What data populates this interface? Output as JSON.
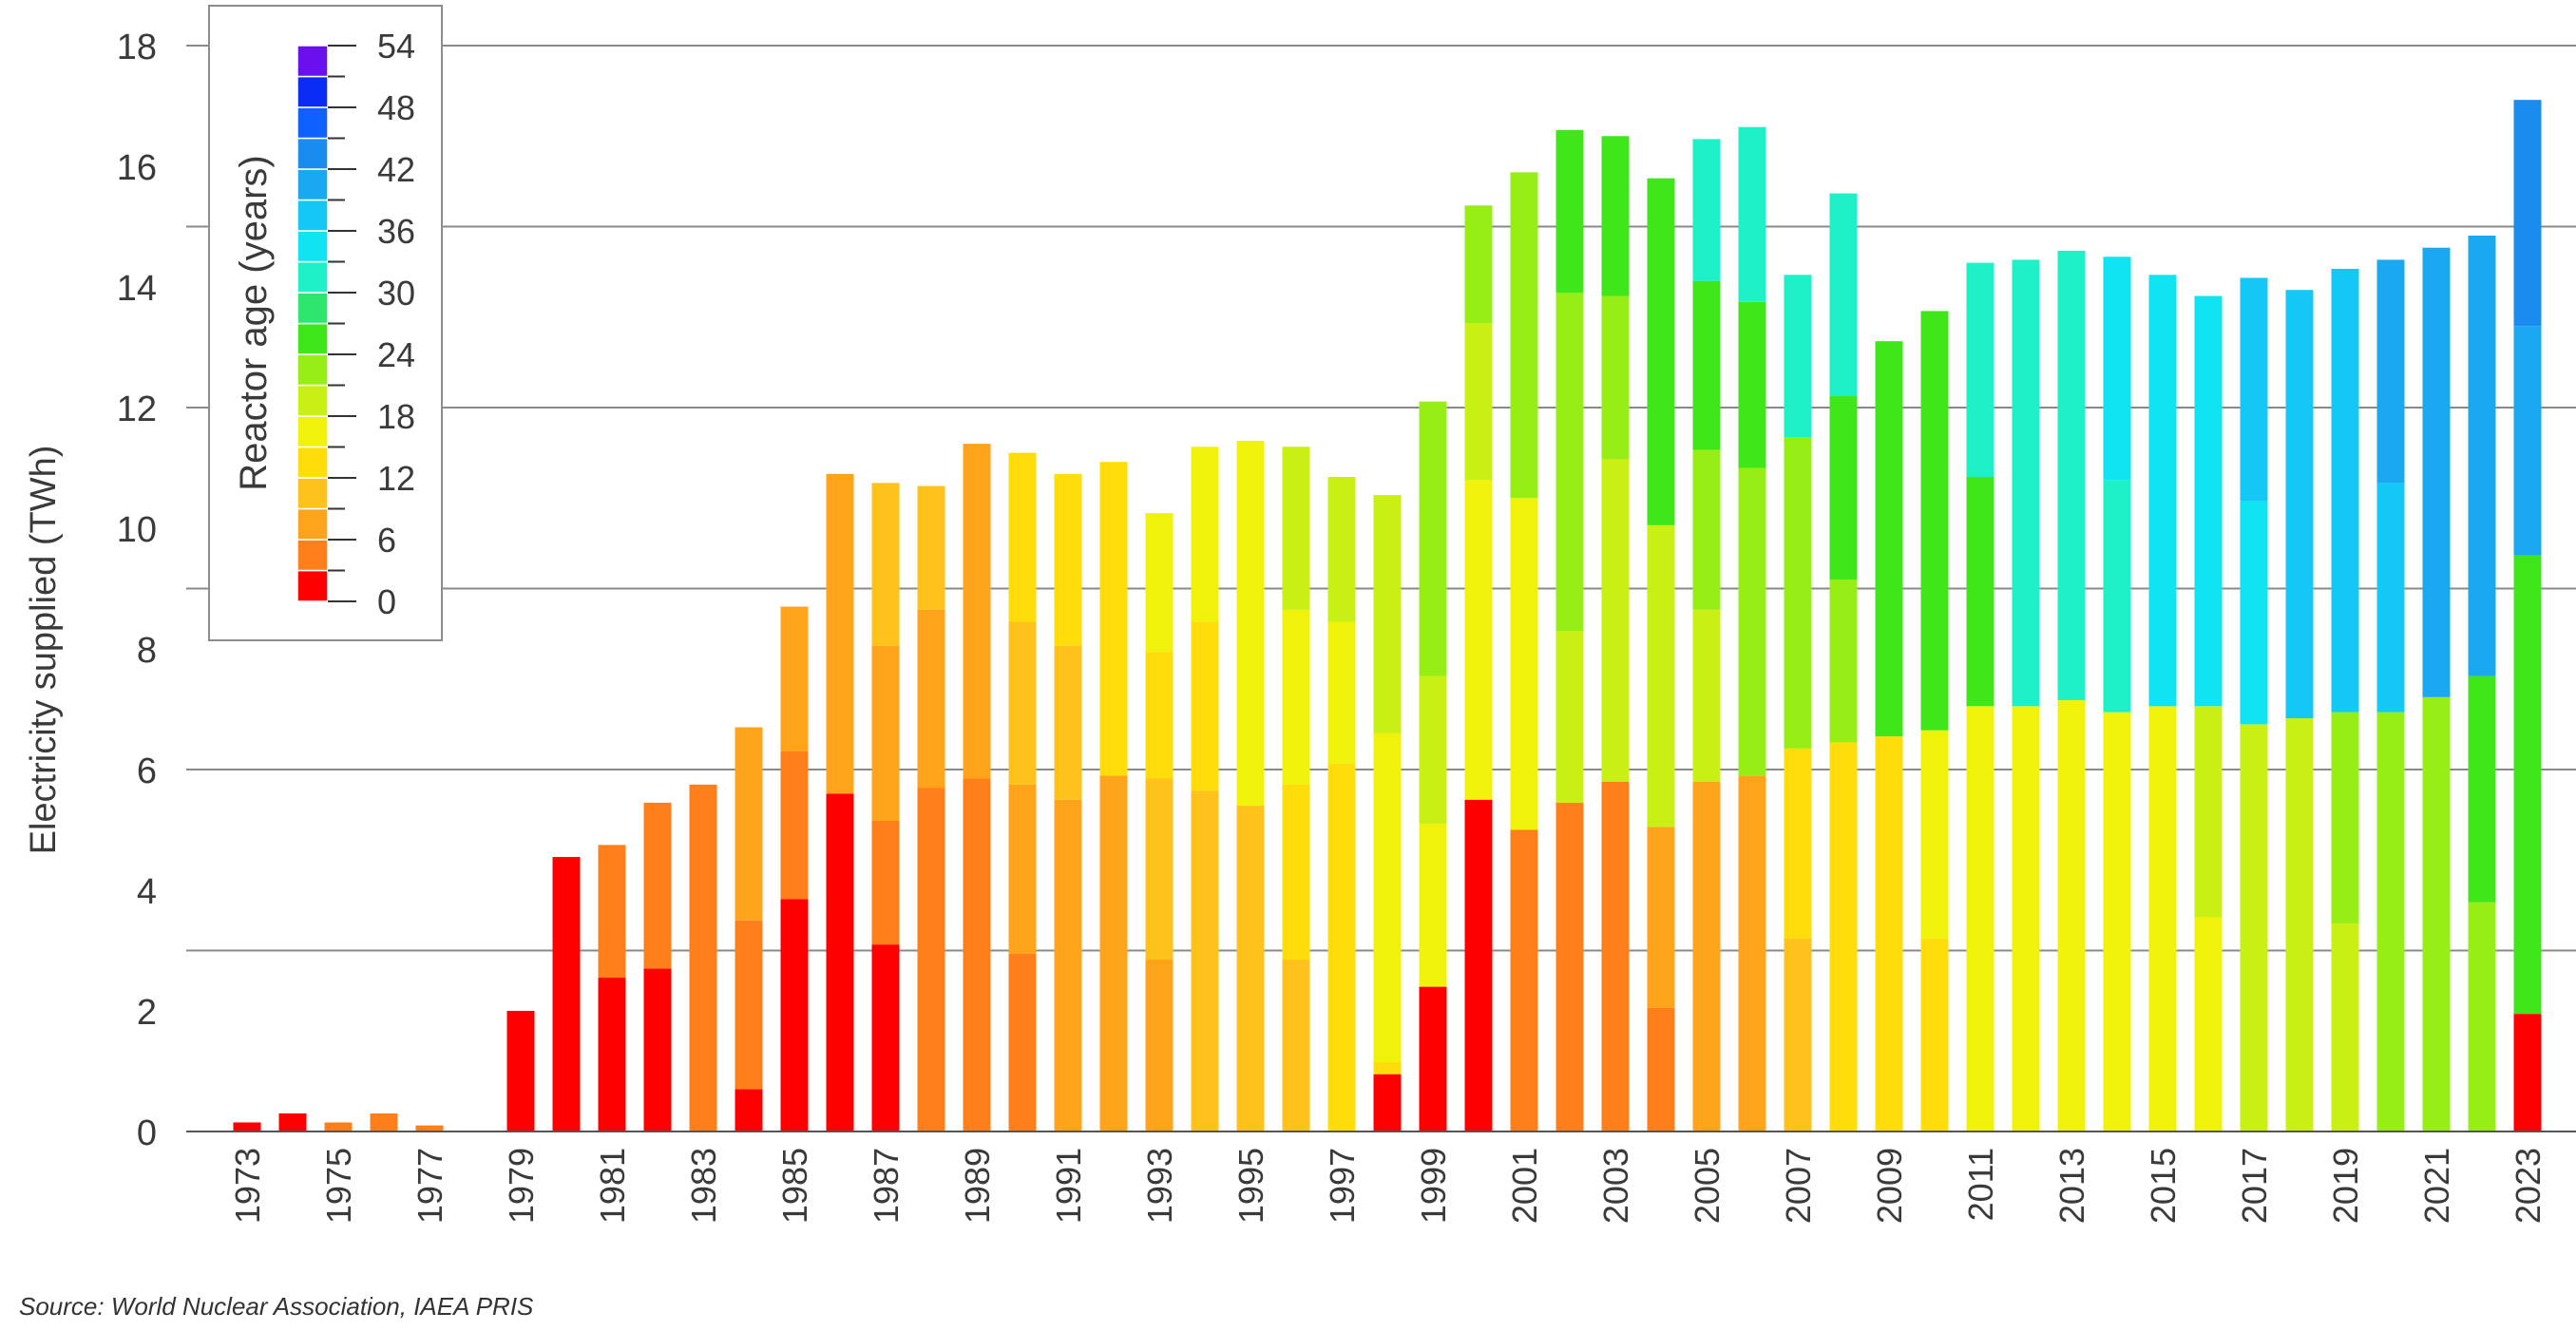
{
  "source_note": "Source: World Nuclear Association, IAEA PRIS",
  "chart_data": {
    "type": "bar",
    "stacked": true,
    "ylabel": "Electricity supplied (TWh)",
    "xlabel": "",
    "ylim": [
      0,
      18
    ],
    "yticks": [
      0,
      2,
      4,
      6,
      8,
      10,
      12,
      14,
      16,
      18
    ],
    "grid": true,
    "years": [
      1973,
      1974,
      1975,
      1976,
      1977,
      1978,
      1979,
      1980,
      1981,
      1982,
      1983,
      1984,
      1985,
      1986,
      1987,
      1988,
      1989,
      1990,
      1991,
      1992,
      1993,
      1994,
      1995,
      1996,
      1997,
      1998,
      1999,
      2000,
      2001,
      2002,
      2003,
      2004,
      2005,
      2006,
      2007,
      2008,
      2009,
      2010,
      2011,
      2012,
      2013,
      2014,
      2015,
      2016,
      2017,
      2018,
      2019,
      2020,
      2021,
      2022,
      2023
    ],
    "xtick_labels": [
      "1973",
      "1975",
      "1977",
      "1979",
      "1981",
      "1983",
      "1985",
      "1987",
      "1989",
      "1991",
      "1993",
      "1995",
      "1997",
      "1999",
      "2001",
      "2003",
      "2005",
      "2007",
      "2009",
      "2011",
      "2013",
      "2015",
      "2017",
      "2019",
      "2021",
      "2023"
    ],
    "bars": [
      {
        "year": 1973,
        "segments": [
          {
            "age": 0,
            "value": 0.15
          }
        ]
      },
      {
        "year": 1974,
        "segments": [
          {
            "age": 0,
            "value": 0.3
          }
        ]
      },
      {
        "year": 1975,
        "segments": [
          {
            "age": 3,
            "value": 0.15
          }
        ]
      },
      {
        "year": 1976,
        "segments": [
          {
            "age": 3,
            "value": 0.3
          }
        ]
      },
      {
        "year": 1977,
        "segments": [
          {
            "age": 3,
            "value": 0.1
          }
        ]
      },
      {
        "year": 1978,
        "segments": []
      },
      {
        "year": 1979,
        "segments": [
          {
            "age": 0,
            "value": 2.0
          }
        ]
      },
      {
        "year": 1980,
        "segments": [
          {
            "age": 0,
            "value": 4.55
          }
        ]
      },
      {
        "year": 1981,
        "segments": [
          {
            "age": 0,
            "value": 2.55
          },
          {
            "age": 3,
            "value": 2.2
          }
        ]
      },
      {
        "year": 1982,
        "segments": [
          {
            "age": 0,
            "value": 2.7
          },
          {
            "age": 3,
            "value": 2.75
          }
        ]
      },
      {
        "year": 1983,
        "segments": [
          {
            "age": 3,
            "value": 5.75
          }
        ]
      },
      {
        "year": 1984,
        "segments": [
          {
            "age": 0,
            "value": 0.7
          },
          {
            "age": 3,
            "value": 2.8
          },
          {
            "age": 6,
            "value": 3.2
          }
        ]
      },
      {
        "year": 1985,
        "segments": [
          {
            "age": 0,
            "value": 3.85
          },
          {
            "age": 3,
            "value": 2.45
          },
          {
            "age": 6,
            "value": 2.4
          }
        ]
      },
      {
        "year": 1986,
        "segments": [
          {
            "age": 0,
            "value": 5.6
          },
          {
            "age": 6,
            "value": 5.3
          }
        ]
      },
      {
        "year": 1987,
        "segments": [
          {
            "age": 0,
            "value": 3.1
          },
          {
            "age": 3,
            "value": 2.05
          },
          {
            "age": 6,
            "value": 2.9
          },
          {
            "age": 9,
            "value": 2.7
          }
        ]
      },
      {
        "year": 1988,
        "segments": [
          {
            "age": 3,
            "value": 5.7
          },
          {
            "age": 6,
            "value": 2.95
          },
          {
            "age": 9,
            "value": 2.05
          }
        ]
      },
      {
        "year": 1989,
        "segments": [
          {
            "age": 3,
            "value": 5.85
          },
          {
            "age": 6,
            "value": 5.55
          }
        ]
      },
      {
        "year": 1990,
        "segments": [
          {
            "age": 3,
            "value": 2.95
          },
          {
            "age": 6,
            "value": 2.8
          },
          {
            "age": 9,
            "value": 2.7
          },
          {
            "age": 12,
            "value": 2.8
          }
        ]
      },
      {
        "year": 1991,
        "segments": [
          {
            "age": 6,
            "value": 5.5
          },
          {
            "age": 9,
            "value": 2.55
          },
          {
            "age": 12,
            "value": 2.85
          }
        ]
      },
      {
        "year": 1992,
        "segments": [
          {
            "age": 6,
            "value": 5.9
          },
          {
            "age": 12,
            "value": 5.2
          }
        ]
      },
      {
        "year": 1993,
        "segments": [
          {
            "age": 6,
            "value": 2.85
          },
          {
            "age": 9,
            "value": 3.0
          },
          {
            "age": 12,
            "value": 2.1
          },
          {
            "age": 15,
            "value": 2.3
          }
        ]
      },
      {
        "year": 1994,
        "segments": [
          {
            "age": 9,
            "value": 5.65
          },
          {
            "age": 12,
            "value": 2.8
          },
          {
            "age": 15,
            "value": 2.9
          }
        ]
      },
      {
        "year": 1995,
        "segments": [
          {
            "age": 9,
            "value": 5.4
          },
          {
            "age": 15,
            "value": 6.05
          }
        ]
      },
      {
        "year": 1996,
        "segments": [
          {
            "age": 9,
            "value": 2.85
          },
          {
            "age": 12,
            "value": 2.9
          },
          {
            "age": 15,
            "value": 2.9
          },
          {
            "age": 18,
            "value": 2.7
          }
        ]
      },
      {
        "year": 1997,
        "segments": [
          {
            "age": 12,
            "value": 6.1
          },
          {
            "age": 15,
            "value": 2.35
          },
          {
            "age": 18,
            "value": 2.4
          }
        ]
      },
      {
        "year": 1998,
        "segments": [
          {
            "age": 0,
            "value": 0.95
          },
          {
            "age": 12,
            "value": 0.2
          },
          {
            "age": 15,
            "value": 5.45
          },
          {
            "age": 18,
            "value": 3.95
          }
        ]
      },
      {
        "year": 1999,
        "segments": [
          {
            "age": 0,
            "value": 2.4
          },
          {
            "age": 15,
            "value": 2.7
          },
          {
            "age": 18,
            "value": 2.45
          },
          {
            "age": 21,
            "value": 4.55
          }
        ]
      },
      {
        "year": 2000,
        "segments": [
          {
            "age": 0,
            "value": 5.5
          },
          {
            "age": 15,
            "value": 5.3
          },
          {
            "age": 18,
            "value": 2.6
          },
          {
            "age": 21,
            "value": 1.95
          }
        ]
      },
      {
        "year": 2001,
        "segments": [
          {
            "age": 3,
            "value": 5.0
          },
          {
            "age": 15,
            "value": 5.5
          },
          {
            "age": 21,
            "value": 5.4
          }
        ]
      },
      {
        "year": 2002,
        "segments": [
          {
            "age": 3,
            "value": 5.45
          },
          {
            "age": 18,
            "value": 2.85
          },
          {
            "age": 21,
            "value": 5.6
          },
          {
            "age": 24,
            "value": 2.7
          }
        ]
      },
      {
        "year": 2003,
        "segments": [
          {
            "age": 3,
            "value": 5.8
          },
          {
            "age": 18,
            "value": 5.35
          },
          {
            "age": 21,
            "value": 2.7
          },
          {
            "age": 24,
            "value": 2.65
          }
        ]
      },
      {
        "year": 2004,
        "segments": [
          {
            "age": 3,
            "value": 2.05
          },
          {
            "age": 6,
            "value": 3.0
          },
          {
            "age": 18,
            "value": 5.0
          },
          {
            "age": 24,
            "value": 5.75
          }
        ]
      },
      {
        "year": 2005,
        "segments": [
          {
            "age": 6,
            "value": 5.8
          },
          {
            "age": 18,
            "value": 2.85
          },
          {
            "age": 21,
            "value": 2.65
          },
          {
            "age": 24,
            "value": 2.8
          },
          {
            "age": 30,
            "value": 2.35
          }
        ]
      },
      {
        "year": 2006,
        "segments": [
          {
            "age": 6,
            "value": 5.9
          },
          {
            "age": 21,
            "value": 5.1
          },
          {
            "age": 24,
            "value": 2.75
          },
          {
            "age": 30,
            "value": 2.9
          }
        ]
      },
      {
        "year": 2007,
        "segments": [
          {
            "age": 9,
            "value": 3.2
          },
          {
            "age": 12,
            "value": 3.15
          },
          {
            "age": 21,
            "value": 5.15
          },
          {
            "age": 30,
            "value": 2.7
          }
        ]
      },
      {
        "year": 2008,
        "segments": [
          {
            "age": 12,
            "value": 6.45
          },
          {
            "age": 21,
            "value": 2.7
          },
          {
            "age": 24,
            "value": 3.05
          },
          {
            "age": 30,
            "value": 3.35
          }
        ]
      },
      {
        "year": 2009,
        "segments": [
          {
            "age": 12,
            "value": 6.55
          },
          {
            "age": 24,
            "value": 6.55
          }
        ]
      },
      {
        "year": 2010,
        "segments": [
          {
            "age": 12,
            "value": 3.2
          },
          {
            "age": 15,
            "value": 3.45
          },
          {
            "age": 24,
            "value": 6.95
          }
        ]
      },
      {
        "year": 2011,
        "segments": [
          {
            "age": 15,
            "value": 7.05
          },
          {
            "age": 24,
            "value": 3.8
          },
          {
            "age": 30,
            "value": 3.55
          }
        ]
      },
      {
        "year": 2012,
        "segments": [
          {
            "age": 15,
            "value": 7.05
          },
          {
            "age": 30,
            "value": 7.4
          }
        ]
      },
      {
        "year": 2013,
        "segments": [
          {
            "age": 15,
            "value": 7.15
          },
          {
            "age": 30,
            "value": 7.45
          }
        ]
      },
      {
        "year": 2014,
        "segments": [
          {
            "age": 15,
            "value": 6.95
          },
          {
            "age": 30,
            "value": 3.85
          },
          {
            "age": 33,
            "value": 3.7
          }
        ]
      },
      {
        "year": 2015,
        "segments": [
          {
            "age": 15,
            "value": 7.05
          },
          {
            "age": 33,
            "value": 7.15
          }
        ]
      },
      {
        "year": 2016,
        "segments": [
          {
            "age": 15,
            "value": 3.55
          },
          {
            "age": 18,
            "value": 3.5
          },
          {
            "age": 33,
            "value": 6.8
          }
        ]
      },
      {
        "year": 2017,
        "segments": [
          {
            "age": 18,
            "value": 6.75
          },
          {
            "age": 33,
            "value": 3.7
          },
          {
            "age": 36,
            "value": 3.7
          }
        ]
      },
      {
        "year": 2018,
        "segments": [
          {
            "age": 18,
            "value": 6.85
          },
          {
            "age": 36,
            "value": 7.1
          }
        ]
      },
      {
        "year": 2019,
        "segments": [
          {
            "age": 18,
            "value": 3.45
          },
          {
            "age": 21,
            "value": 3.5
          },
          {
            "age": 36,
            "value": 7.35
          }
        ]
      },
      {
        "year": 2020,
        "segments": [
          {
            "age": 21,
            "value": 6.95
          },
          {
            "age": 36,
            "value": 3.8
          },
          {
            "age": 39,
            "value": 3.7
          }
        ]
      },
      {
        "year": 2021,
        "segments": [
          {
            "age": 21,
            "value": 7.2
          },
          {
            "age": 39,
            "value": 7.45
          }
        ]
      },
      {
        "year": 2022,
        "segments": [
          {
            "age": 21,
            "value": 3.8
          },
          {
            "age": 24,
            "value": 3.75
          },
          {
            "age": 39,
            "value": 7.3
          }
        ]
      },
      {
        "year": 2023,
        "segments": [
          {
            "age": 0,
            "value": 1.95
          },
          {
            "age": 24,
            "value": 7.6
          },
          {
            "age": 39,
            "value": 3.8
          },
          {
            "age": 42,
            "value": 3.75
          }
        ]
      }
    ],
    "colorbar": {
      "title": "Reactor age (years)",
      "tick_labels": [
        "0",
        "6",
        "12",
        "18",
        "24",
        "30",
        "36",
        "42",
        "48",
        "54"
      ],
      "tick_values": [
        0,
        6,
        12,
        18,
        24,
        30,
        36,
        42,
        48,
        54
      ],
      "color_steps": [
        {
          "age": 0,
          "color": "#ff0000"
        },
        {
          "age": 3,
          "color": "#ff7f1a"
        },
        {
          "age": 6,
          "color": "#ffa31a"
        },
        {
          "age": 9,
          "color": "#ffc21a"
        },
        {
          "age": 12,
          "color": "#ffdc0a"
        },
        {
          "age": 15,
          "color": "#f0f20a"
        },
        {
          "age": 18,
          "color": "#c8f014"
        },
        {
          "age": 21,
          "color": "#96ee14"
        },
        {
          "age": 24,
          "color": "#3ee61a"
        },
        {
          "age": 27,
          "color": "#2ce66e"
        },
        {
          "age": 30,
          "color": "#1ef0c8"
        },
        {
          "age": 33,
          "color": "#10e4f2"
        },
        {
          "age": 36,
          "color": "#14c8f5"
        },
        {
          "age": 39,
          "color": "#1aa8f0"
        },
        {
          "age": 42,
          "color": "#1a8cf0"
        },
        {
          "age": 45,
          "color": "#1060ff"
        },
        {
          "age": 48,
          "color": "#0a2cf5"
        },
        {
          "age": 51,
          "color": "#6a10f0"
        }
      ]
    }
  }
}
